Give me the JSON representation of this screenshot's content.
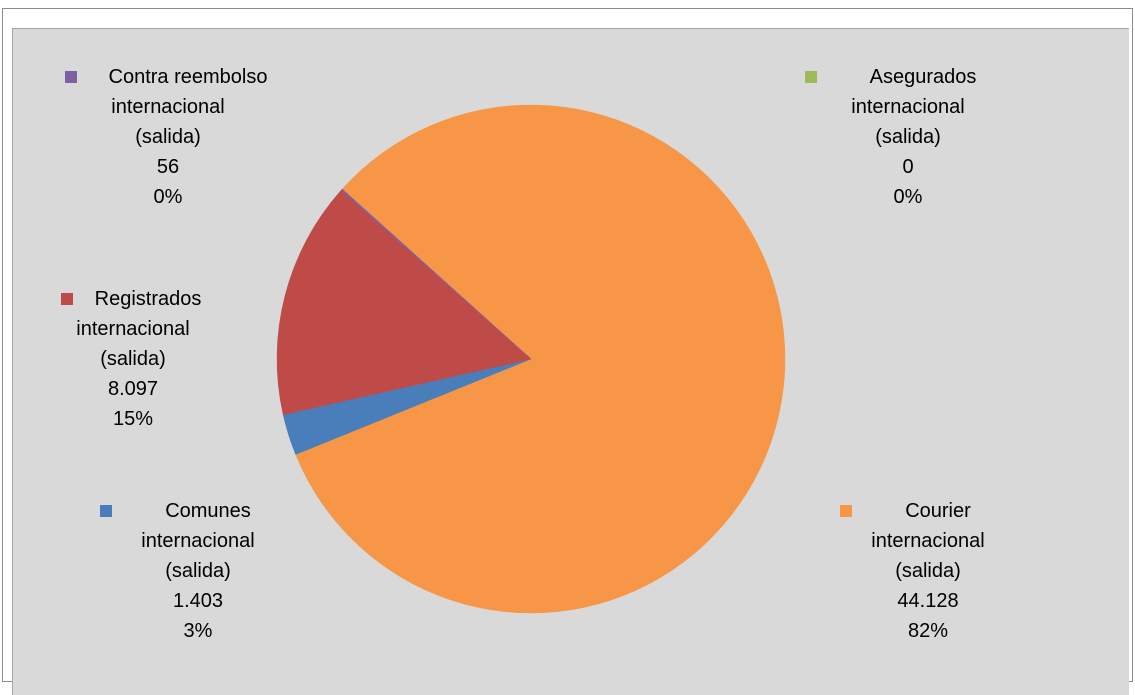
{
  "chart_data": {
    "type": "pie",
    "title": "",
    "slices": [
      {
        "key": "courier",
        "name": [
          "Courier",
          "internacional",
          "(salida)"
        ],
        "value": "44.128",
        "numeric": 44128,
        "pct": "82%",
        "color": "#f79646"
      },
      {
        "key": "comunes",
        "name": [
          "Comunes",
          "internacional",
          "(salida)"
        ],
        "value": "1.403",
        "numeric": 1403,
        "pct": "3%",
        "color": "#4a7ebb"
      },
      {
        "key": "registrados",
        "name": [
          "Registrados",
          "internacional",
          "(salida)"
        ],
        "value": "8.097",
        "numeric": 8097,
        "pct": "15%",
        "color": "#be4b48"
      },
      {
        "key": "contra",
        "name": [
          "Contra reembolso",
          "internacional",
          "(salida)"
        ],
        "value": "56",
        "numeric": 56,
        "pct": "0%",
        "color": "#7d60a0"
      },
      {
        "key": "asegurados",
        "name": [
          "Asegurados",
          "internacional",
          "(salida)"
        ],
        "value": "0",
        "numeric": 0,
        "pct": "0%",
        "color": "#9bbb59"
      }
    ]
  }
}
